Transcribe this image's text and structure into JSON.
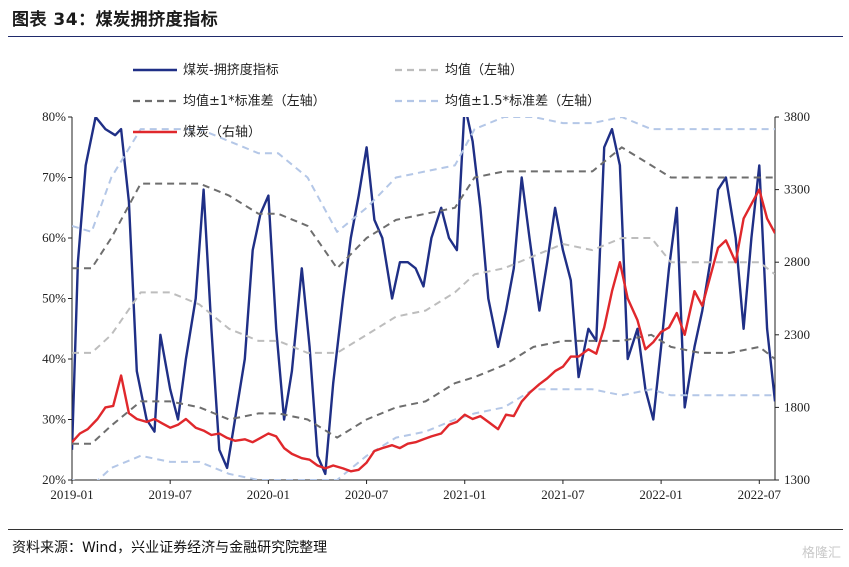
{
  "header": {
    "title": "图表 34：煤炭拥挤度指标"
  },
  "footer": {
    "source": "资料来源：Wind，兴业证券经济与金融研究院整理",
    "watermark": "格隆汇"
  },
  "chart_data": {
    "type": "line",
    "title": "图表 34：煤炭拥挤度指标",
    "x_ticks": [
      "2019-01",
      "2019-07",
      "2020-01",
      "2020-07",
      "2021-01",
      "2021-07",
      "2022-01",
      "2022-07"
    ],
    "x_range": [
      2019.0,
      2022.58
    ],
    "y_left": {
      "range": [
        20,
        80
      ],
      "ticks": [
        "20%",
        "30%",
        "40%",
        "50%",
        "60%",
        "70%",
        "80%"
      ]
    },
    "y_right": {
      "range": [
        1300,
        3800
      ],
      "ticks": [
        "1300",
        "1800",
        "2300",
        "2800",
        "3300",
        "3800"
      ]
    },
    "legend_position": "top",
    "series": [
      {
        "name": "煤炭-拥挤度指标",
        "axis": "left",
        "color": "#1f2f86",
        "style": "solid",
        "x": [
          2019.0,
          2019.03,
          2019.07,
          2019.12,
          2019.17,
          2019.22,
          2019.25,
          2019.29,
          2019.33,
          2019.38,
          2019.42,
          2019.45,
          2019.5,
          2019.54,
          2019.58,
          2019.63,
          2019.67,
          2019.71,
          2019.75,
          2019.79,
          2019.83,
          2019.88,
          2019.92,
          2019.96,
          2020.0,
          2020.04,
          2020.08,
          2020.12,
          2020.17,
          2020.21,
          2020.25,
          2020.29,
          2020.33,
          2020.38,
          2020.42,
          2020.46,
          2020.5,
          2020.54,
          2020.58,
          2020.63,
          2020.67,
          2020.71,
          2020.75,
          2020.79,
          2020.83,
          2020.88,
          2020.92,
          2020.96,
          2021.0,
          2021.04,
          2021.08,
          2021.12,
          2021.17,
          2021.21,
          2021.25,
          2021.29,
          2021.33,
          2021.38,
          2021.42,
          2021.46,
          2021.5,
          2021.54,
          2021.58,
          2021.63,
          2021.67,
          2021.71,
          2021.75,
          2021.79,
          2021.83,
          2021.88,
          2021.92,
          2021.96,
          2022.0,
          2022.04,
          2022.08,
          2022.12,
          2022.17,
          2022.21,
          2022.25,
          2022.29,
          2022.33,
          2022.38,
          2022.42,
          2022.46,
          2022.5,
          2022.54,
          2022.58
        ],
        "y": [
          25,
          56,
          72,
          80,
          78,
          77,
          78,
          66,
          38,
          30,
          28,
          44,
          35,
          30,
          40,
          50,
          68,
          45,
          25,
          22,
          30,
          40,
          58,
          64,
          67,
          45,
          30,
          38,
          55,
          42,
          24,
          21,
          36,
          50,
          60,
          67,
          75,
          63,
          60,
          50,
          56,
          56,
          55,
          52,
          60,
          65,
          60,
          58,
          82,
          76,
          65,
          50,
          42,
          48,
          55,
          70,
          60,
          48,
          56,
          65,
          58,
          53,
          37,
          45,
          43,
          75,
          78,
          72,
          40,
          45,
          35,
          30,
          42,
          55,
          65,
          32,
          42,
          48,
          56,
          68,
          70,
          60,
          45,
          60,
          72,
          45,
          33
        ]
      },
      {
        "name": "均值（左轴）",
        "axis": "left",
        "color": "#bdbdbd",
        "style": "dash",
        "x": [
          2019.0,
          2019.1,
          2019.2,
          2019.35,
          2019.5,
          2019.65,
          2019.8,
          2019.95,
          2020.05,
          2020.2,
          2020.35,
          2020.5,
          2020.65,
          2020.8,
          2020.95,
          2021.05,
          2021.2,
          2021.35,
          2021.5,
          2021.65,
          2021.8,
          2021.95,
          2022.05,
          2022.2,
          2022.35,
          2022.5,
          2022.58
        ],
        "y": [
          41,
          41,
          44,
          51,
          51,
          49,
          45,
          43,
          43,
          41,
          41,
          44,
          47,
          48,
          51,
          54,
          55,
          57,
          59,
          58,
          60,
          60,
          56,
          56,
          56,
          56,
          54
        ]
      },
      {
        "name": "均值±1*标准差（左轴）",
        "axis": "left",
        "color": "#6e6e6e",
        "style": "dash",
        "x": [
          2019.0,
          2019.1,
          2019.2,
          2019.35,
          2019.5,
          2019.65,
          2019.8,
          2019.95,
          2020.05,
          2020.2,
          2020.35,
          2020.5,
          2020.65,
          2020.8,
          2020.95,
          2021.05,
          2021.2,
          2021.35,
          2021.5,
          2021.65,
          2021.8,
          2021.95,
          2022.05,
          2022.2,
          2022.35,
          2022.5,
          2022.58
        ],
        "y": [
          55,
          55,
          60,
          69,
          69,
          69,
          67,
          64,
          64,
          62,
          55,
          60,
          63,
          64,
          65,
          70,
          71,
          71,
          71,
          71,
          75,
          72,
          70,
          70,
          70,
          70,
          70
        ]
      },
      {
        "name": "均值±1*标准差（左轴）",
        "axis": "left",
        "color": "#6e6e6e",
        "style": "dash",
        "legend": false,
        "x": [
          2019.0,
          2019.1,
          2019.2,
          2019.35,
          2019.5,
          2019.65,
          2019.8,
          2019.95,
          2020.05,
          2020.2,
          2020.35,
          2020.5,
          2020.65,
          2020.8,
          2020.95,
          2021.05,
          2021.2,
          2021.35,
          2021.5,
          2021.65,
          2021.8,
          2021.95,
          2022.05,
          2022.2,
          2022.35,
          2022.5,
          2022.58
        ],
        "y": [
          26,
          26,
          29,
          33,
          33,
          32,
          30,
          31,
          31,
          30,
          27,
          30,
          32,
          33,
          36,
          37,
          39,
          42,
          43,
          43,
          43,
          44,
          42,
          41,
          41,
          42,
          40
        ]
      },
      {
        "name": "均值±1.5*标准差（左轴）",
        "axis": "left",
        "color": "#b4c7e7",
        "style": "dash",
        "x": [
          2019.0,
          2019.1,
          2019.2,
          2019.35,
          2019.5,
          2019.65,
          2019.8,
          2019.95,
          2020.05,
          2020.2,
          2020.35,
          2020.5,
          2020.65,
          2020.8,
          2020.95,
          2021.05,
          2021.2,
          2021.35,
          2021.5,
          2021.65,
          2021.8,
          2021.95,
          2022.05,
          2022.2,
          2022.35,
          2022.5,
          2022.58
        ],
        "y": [
          62,
          61,
          70,
          78,
          78,
          78,
          76,
          74,
          74,
          70,
          61,
          65,
          70,
          71,
          72,
          78,
          80,
          80,
          79,
          79,
          80,
          78,
          78,
          78,
          78,
          78,
          78
        ]
      },
      {
        "name": "均值±1.5*标准差（左轴）",
        "axis": "left",
        "color": "#b4c7e7",
        "style": "dash",
        "legend": false,
        "x": [
          2019.0,
          2019.1,
          2019.2,
          2019.35,
          2019.5,
          2019.65,
          2019.8,
          2019.95,
          2020.05,
          2020.2,
          2020.35,
          2020.5,
          2020.65,
          2020.8,
          2020.95,
          2021.05,
          2021.2,
          2021.35,
          2021.5,
          2021.65,
          2021.8,
          2021.95,
          2022.05,
          2022.2,
          2022.35,
          2022.5,
          2022.58
        ],
        "y": [
          20,
          19,
          22,
          24,
          23,
          23,
          21,
          20,
          20,
          20,
          20,
          24,
          27,
          28,
          30,
          31,
          32,
          35,
          35,
          35,
          34,
          35,
          34,
          34,
          34,
          34,
          34
        ]
      },
      {
        "name": "煤炭（右轴）",
        "axis": "right",
        "color": "#e0282c",
        "style": "solid",
        "x": [
          2019.0,
          2019.04,
          2019.08,
          2019.13,
          2019.17,
          2019.21,
          2019.25,
          2019.29,
          2019.33,
          2019.38,
          2019.42,
          2019.46,
          2019.5,
          2019.54,
          2019.58,
          2019.63,
          2019.67,
          2019.71,
          2019.75,
          2019.79,
          2019.83,
          2019.88,
          2019.92,
          2019.96,
          2020.0,
          2020.04,
          2020.08,
          2020.12,
          2020.17,
          2020.21,
          2020.25,
          2020.29,
          2020.33,
          2020.38,
          2020.42,
          2020.46,
          2020.5,
          2020.54,
          2020.58,
          2020.63,
          2020.67,
          2020.71,
          2020.75,
          2020.79,
          2020.83,
          2020.88,
          2020.92,
          2020.96,
          2021.0,
          2021.04,
          2021.08,
          2021.12,
          2021.17,
          2021.21,
          2021.25,
          2021.29,
          2021.33,
          2021.38,
          2021.42,
          2021.46,
          2021.5,
          2021.54,
          2021.58,
          2021.63,
          2021.67,
          2021.71,
          2021.75,
          2021.79,
          2021.83,
          2021.88,
          2021.92,
          2021.96,
          2022.0,
          2022.04,
          2022.08,
          2022.12,
          2022.17,
          2022.21,
          2022.25,
          2022.29,
          2022.33,
          2022.38,
          2022.42,
          2022.46,
          2022.5,
          2022.54,
          2022.58
        ],
        "y": [
          1560,
          1620,
          1650,
          1720,
          1800,
          1810,
          2020,
          1760,
          1720,
          1700,
          1720,
          1690,
          1660,
          1680,
          1720,
          1660,
          1640,
          1610,
          1620,
          1590,
          1570,
          1580,
          1560,
          1590,
          1620,
          1600,
          1520,
          1480,
          1450,
          1440,
          1400,
          1380,
          1400,
          1380,
          1360,
          1370,
          1420,
          1500,
          1520,
          1540,
          1520,
          1550,
          1560,
          1580,
          1600,
          1620,
          1680,
          1700,
          1750,
          1720,
          1740,
          1700,
          1650,
          1750,
          1740,
          1840,
          1900,
          1960,
          2000,
          2050,
          2080,
          2150,
          2150,
          2200,
          2170,
          2350,
          2600,
          2800,
          2550,
          2400,
          2200,
          2250,
          2320,
          2350,
          2450,
          2300,
          2600,
          2500,
          2700,
          2900,
          2950,
          2800,
          3100,
          3200,
          3300,
          3100,
          3000
        ]
      }
    ]
  }
}
